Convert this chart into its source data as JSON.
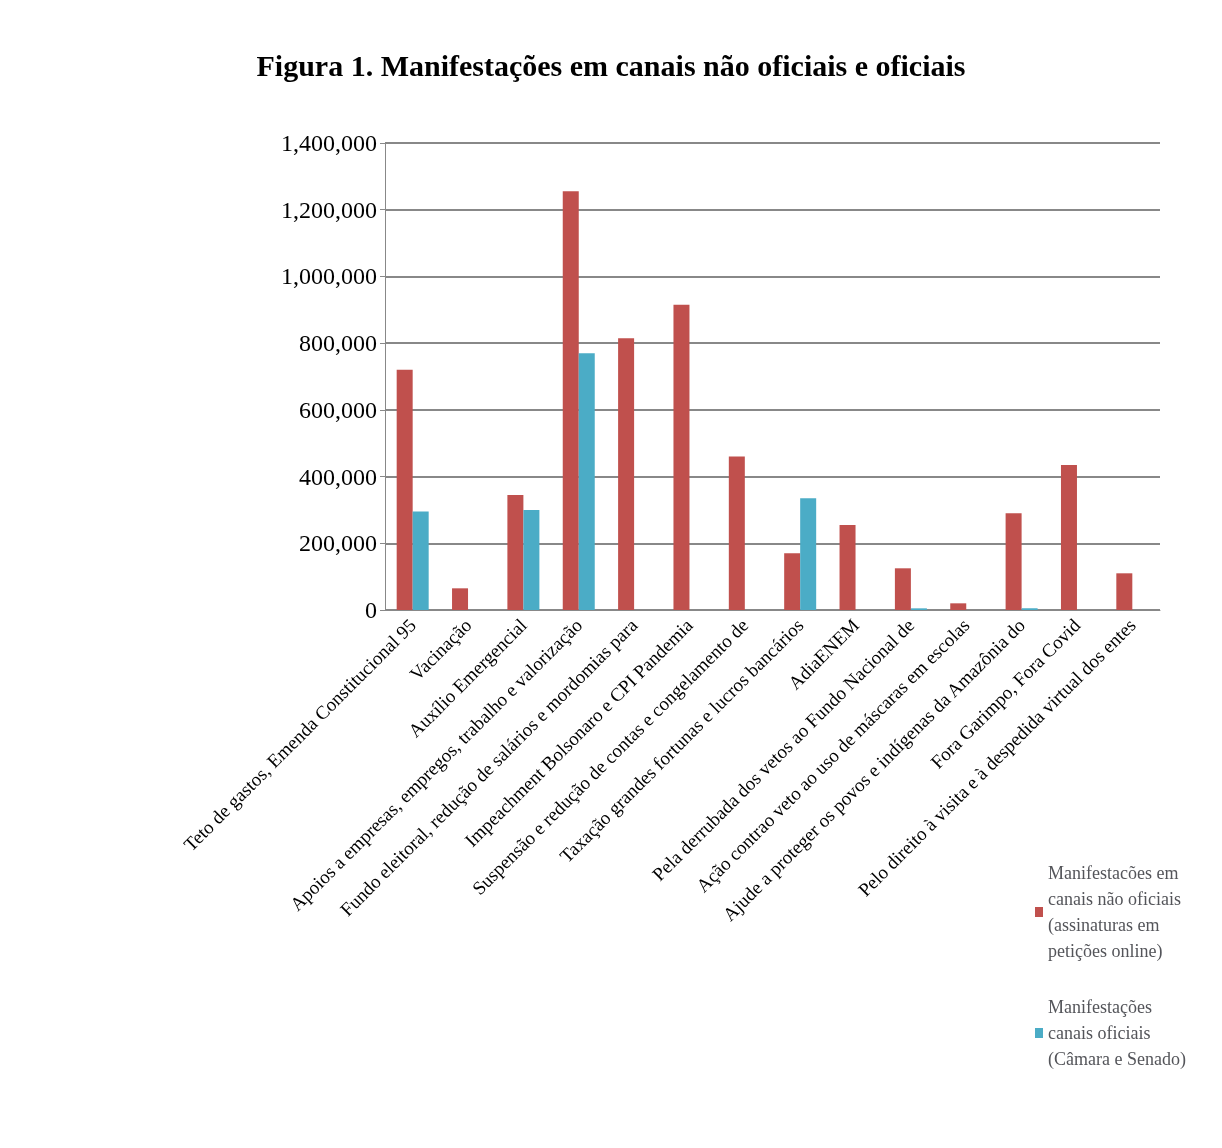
{
  "chart_data": {
    "type": "bar",
    "title": "Figura 1. Manifestações em canais não oficiais e oficiais",
    "categories": [
      "Teto de gastos, Emenda Constitucional 95",
      "Vacinação",
      "Auxílio Emergencial",
      "Apoios a empresas, empregos, trabalho e valorização",
      "Fundo eleitoral, redução de salários e mordomias para",
      "Impeachment Bolsonaro e CPI Pandemia",
      "Suspensão e redução de contas e congelamento de",
      "Taxação grandes fortunas e lucros bancários",
      "AdiaENEM",
      "Pela derrubada dos vetos ao Fundo Nacional de",
      "Ação contrao veto ao uso de máscaras em escolas",
      "Ajude a proteger os povos e indígenas da Amazônia do",
      "Fora Garimpo, Fora Covid",
      "Pelo direito à visita e à despedida virtual dos entes"
    ],
    "series": [
      {
        "name": "Manifestacões em canais não oficiais (assinaturas em petições online)",
        "color": "#c0504d",
        "values": [
          720000,
          65000,
          345000,
          1255000,
          815000,
          915000,
          460000,
          170000,
          255000,
          125000,
          20000,
          290000,
          435000,
          110000
        ]
      },
      {
        "name": "Manifestações canais oficiais (Câmara e Senado)",
        "color": "#4bacc6",
        "values": [
          295000,
          0,
          300000,
          770000,
          0,
          0,
          0,
          335000,
          0,
          5000,
          0,
          5000,
          0,
          0
        ]
      }
    ],
    "ylim": [
      0,
      1400000
    ],
    "yticks": [
      0,
      {
        "value": 200000,
        "label": "200,000"
      },
      {
        "value": 400000,
        "label": "400,000"
      },
      {
        "value": 600000,
        "label": "600,000"
      },
      {
        "value": 800000,
        "label": "800,000"
      },
      {
        "value": 1000000,
        "label": "1,000,000"
      },
      {
        "value": 1200000,
        "label": "1,200,000"
      },
      {
        "value": 1400000,
        "label": "1,400,000"
      }
    ],
    "grid": "y",
    "legend": "bottom right"
  }
}
